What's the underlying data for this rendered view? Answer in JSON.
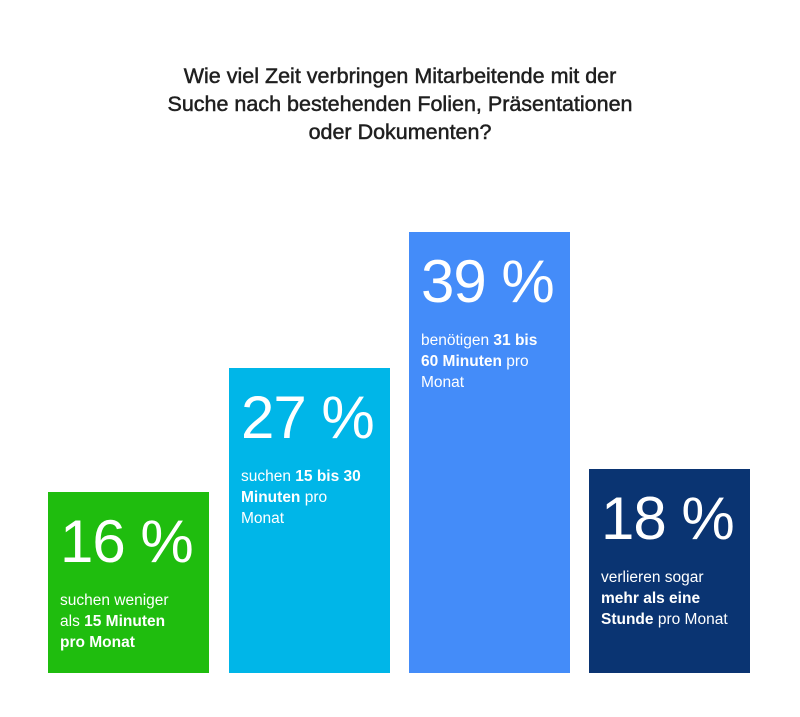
{
  "title_lines": [
    "Wie viel Zeit verbringen Mitarbeitende mit der",
    "Suche nach bestehenden Folien, Präsentationen",
    "oder Dokumenten?"
  ],
  "chart_data": {
    "type": "bar",
    "title": "Wie viel Zeit verbringen Mitarbeitende mit der Suche nach bestehenden Folien, Präsentationen oder Dokumenten?",
    "categories": [
      "suchen weniger als 15 Minuten pro Monat",
      "suchen 15 bis 30 Minuten pro Monat",
      "benötigen 31 bis 60 Minuten pro Monat",
      "verlieren sogar mehr als eine Stunde pro Monat"
    ],
    "values": [
      16,
      27,
      39,
      18
    ],
    "value_labels": [
      "16 %",
      "27 %",
      "39 %",
      "18 %"
    ],
    "colors": [
      "#1fbd0e",
      "#00b6e8",
      "#448cf9",
      "#0a3472"
    ],
    "description_parts": [
      [
        {
          "text": "suchen weniger",
          "bold": false
        },
        {
          "text": "\n",
          "bold": false
        },
        {
          "text": "als ",
          "bold": false
        },
        {
          "text": "15 Minuten",
          "bold": true
        },
        {
          "text": "\n",
          "bold": false
        },
        {
          "text": "pro Monat",
          "bold": true
        }
      ],
      [
        {
          "text": "suchen ",
          "bold": false
        },
        {
          "text": "15 bis 30",
          "bold": true
        },
        {
          "text": "\n",
          "bold": false
        },
        {
          "text": "Minuten",
          "bold": true
        },
        {
          "text": " pro",
          "bold": false
        },
        {
          "text": "\n",
          "bold": false
        },
        {
          "text": "Monat",
          "bold": false
        }
      ],
      [
        {
          "text": "benötigen ",
          "bold": false
        },
        {
          "text": "31 bis",
          "bold": true
        },
        {
          "text": "\n",
          "bold": false
        },
        {
          "text": "60 Minuten",
          "bold": true
        },
        {
          "text": " pro",
          "bold": false
        },
        {
          "text": "\n",
          "bold": false
        },
        {
          "text": "Monat",
          "bold": false
        }
      ],
      [
        {
          "text": "verlieren sogar",
          "bold": false
        },
        {
          "text": "\n",
          "bold": false
        },
        {
          "text": "mehr als eine",
          "bold": true
        },
        {
          "text": "\n",
          "bold": false
        },
        {
          "text": "Stunde",
          "bold": true
        },
        {
          "text": " pro Monat",
          "bold": false
        }
      ]
    ],
    "xlabel": "",
    "ylabel": "",
    "ylim": [
      0,
      39
    ],
    "grid": false,
    "legend": "none"
  }
}
